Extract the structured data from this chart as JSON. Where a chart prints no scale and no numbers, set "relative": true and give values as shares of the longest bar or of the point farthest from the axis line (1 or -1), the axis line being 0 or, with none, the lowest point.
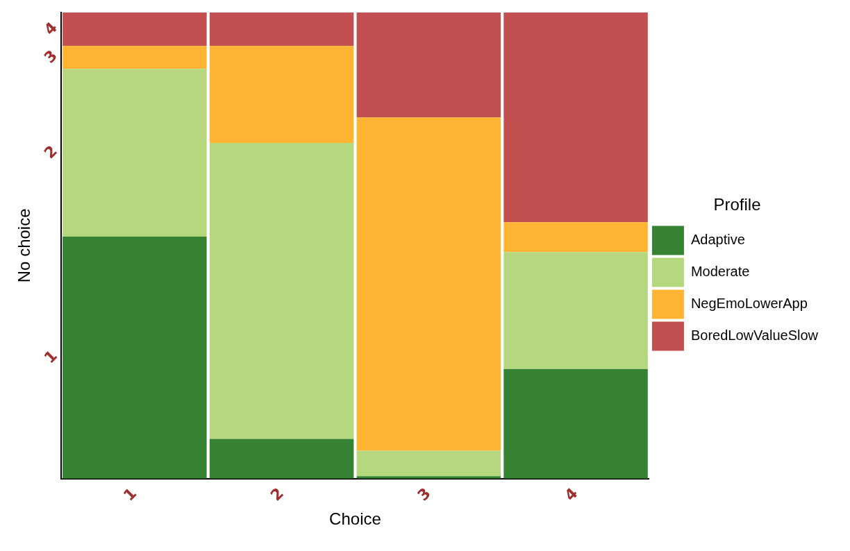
{
  "chart_data": {
    "type": "bar",
    "stacked": true,
    "relative": true,
    "xlabel": "Choice",
    "ylabel": "No choice",
    "legend_title": "Profile",
    "legend": "right",
    "grid": false,
    "categories": [
      "1",
      "2",
      "3",
      "4"
    ],
    "series": [
      {
        "name": "Adaptive",
        "color": "#358233",
        "values": [
          0.519,
          0.085,
          0.005,
          0.235
        ]
      },
      {
        "name": "Moderate",
        "color": "#b5d87e",
        "values": [
          0.36,
          0.635,
          0.055,
          0.251
        ]
      },
      {
        "name": "NegEmoLowerApp",
        "color": "#ffb533",
        "values": [
          0.049,
          0.208,
          0.715,
          0.064
        ]
      },
      {
        "name": "BoredLowValueSlow",
        "color": "#c25050",
        "values": [
          0.072,
          0.072,
          0.225,
          0.45
        ]
      }
    ],
    "annotations": [
      "1",
      "2",
      "3",
      "4"
    ]
  }
}
